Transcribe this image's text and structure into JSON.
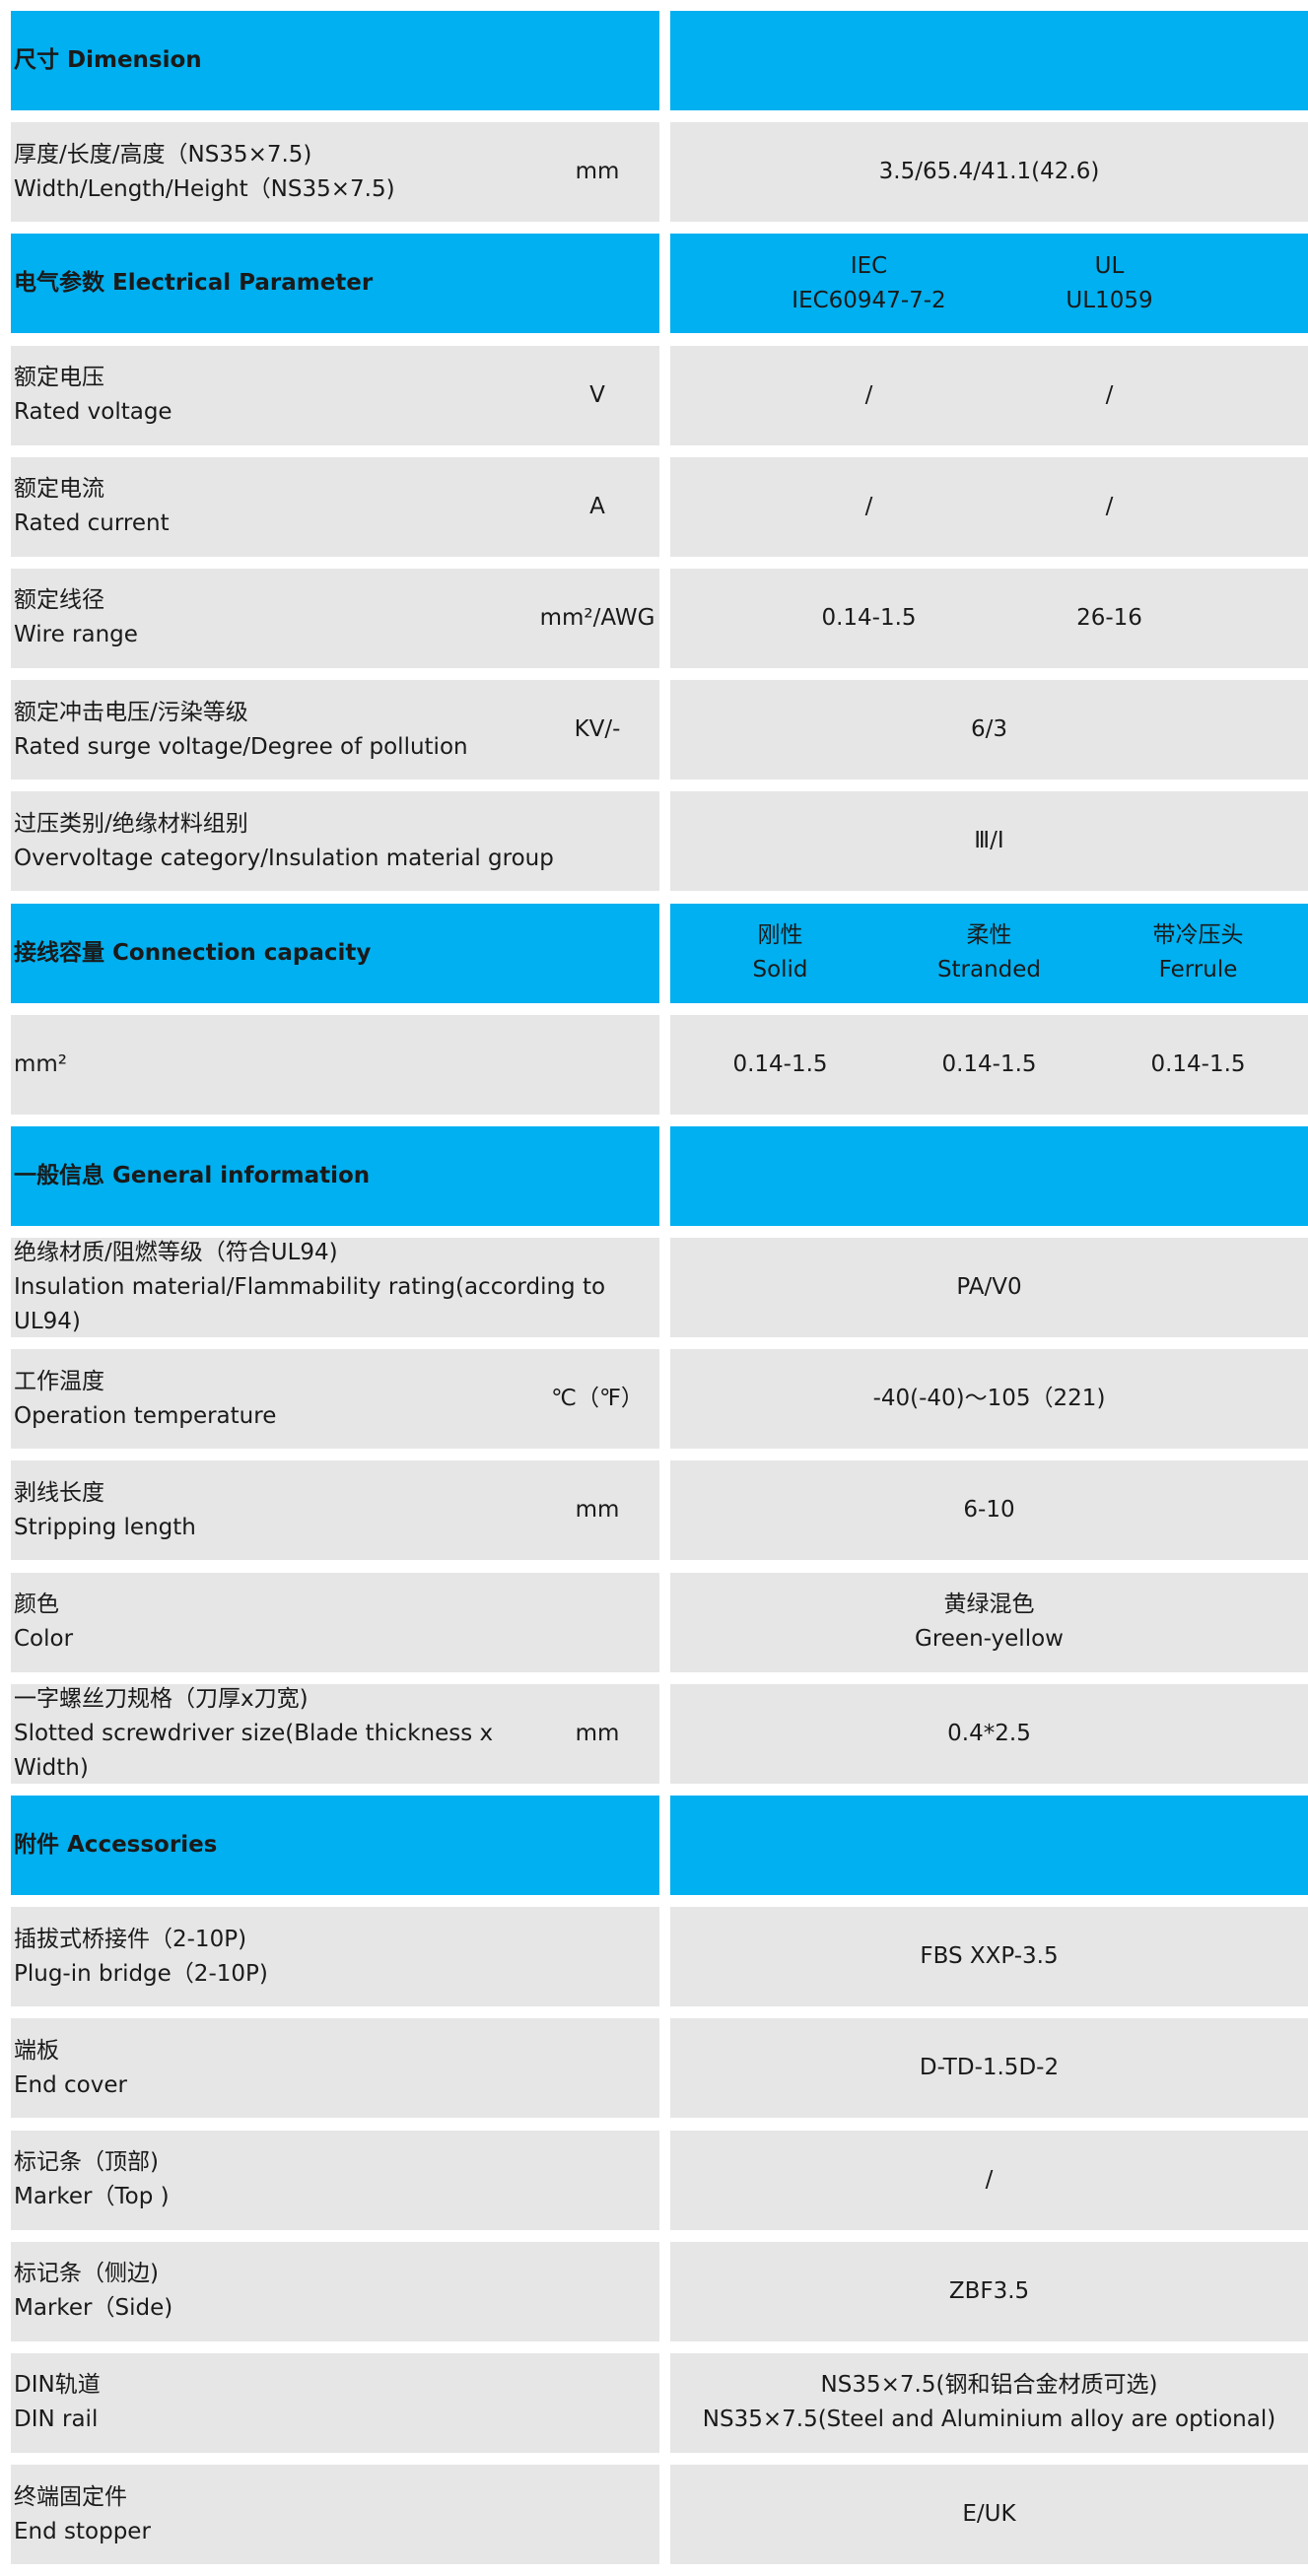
{
  "colors": {
    "header": "#00B0F0",
    "body": "#E7E6E6"
  },
  "rows": [
    {
      "type": "head",
      "label": [
        "尺寸 Dimension"
      ],
      "values": []
    },
    {
      "type": "body",
      "label": [
        "厚度/长度/高度（NS35×7.5)",
        "Width/Length/Height（NS35×7.5)"
      ],
      "unit": "mm",
      "values": [
        [
          "3.5/65.4/41.1(42.6)"
        ]
      ]
    },
    {
      "type": "head",
      "label": [
        "电气参数 Electrical Parameter"
      ],
      "values": [
        [
          "IEC",
          "IEC60947-7-2"
        ],
        [
          "UL",
          "UL1059"
        ]
      ]
    },
    {
      "type": "body",
      "label": [
        "额定电压",
        "Rated voltage"
      ],
      "unit": "V",
      "values": [
        [
          "/"
        ],
        [
          "/"
        ]
      ]
    },
    {
      "type": "body",
      "label": [
        "额定电流",
        "Rated current"
      ],
      "unit": "A",
      "values": [
        [
          "/"
        ],
        [
          "/"
        ]
      ]
    },
    {
      "type": "body",
      "label": [
        "额定线径",
        "Wire range"
      ],
      "unit": "mm²/AWG",
      "values": [
        [
          "0.14-1.5"
        ],
        [
          "26-16"
        ]
      ]
    },
    {
      "type": "body",
      "label": [
        "额定冲击电压/污染等级",
        "Rated surge voltage/Degree of pollution"
      ],
      "unit": "KV/-",
      "values": [
        [
          "6/3"
        ]
      ]
    },
    {
      "type": "body",
      "label": [
        "过压类别/绝缘材料组别",
        "Overvoltage category/Insulation material group"
      ],
      "unit": "",
      "values": [
        [
          "Ⅲ/Ⅰ"
        ]
      ]
    },
    {
      "type": "head",
      "label": [
        "接线容量 Connection capacity"
      ],
      "values": [
        [
          "刚性",
          "Solid"
        ],
        [
          "柔性",
          "Stranded"
        ],
        [
          "带冷压头",
          "Ferrule"
        ]
      ]
    },
    {
      "type": "body",
      "label": [
        "mm²"
      ],
      "unit": "",
      "values": [
        [
          "0.14-1.5"
        ],
        [
          "0.14-1.5"
        ],
        [
          "0.14-1.5"
        ]
      ]
    },
    {
      "type": "head",
      "label": [
        "一般信息 General information"
      ],
      "values": []
    },
    {
      "type": "body",
      "label": [
        "绝缘材质/阻燃等级（符合UL94)",
        "Insulation material/Flammability rating(according to",
        "UL94)"
      ],
      "unit": "",
      "values": [
        [
          "PA/V0"
        ]
      ]
    },
    {
      "type": "body",
      "label": [
        "工作温度",
        "Operation temperature"
      ],
      "unit": "℃（℉）",
      "values": [
        [
          "-40(-40)～105（221)"
        ]
      ]
    },
    {
      "type": "body",
      "label": [
        "剥线长度",
        "Stripping length"
      ],
      "unit": "mm",
      "values": [
        [
          "6-10"
        ]
      ]
    },
    {
      "type": "body",
      "label": [
        "颜色",
        "Color"
      ],
      "unit": "",
      "values": [
        [
          "黄绿混色",
          "Green-yellow"
        ]
      ]
    },
    {
      "type": "body",
      "label": [
        "一字螺丝刀规格（刀厚x刀宽)",
        "Slotted screwdriver size(Blade thickness x",
        "Width)"
      ],
      "unit": "mm",
      "values": [
        [
          "0.4*2.5"
        ]
      ]
    },
    {
      "type": "head",
      "label": [
        "附件 Accessories"
      ],
      "values": []
    },
    {
      "type": "body",
      "label": [
        "插拔式桥接件（2-10P)",
        "Plug-in bridge（2-10P)"
      ],
      "unit": "",
      "values": [
        [
          "FBS XXP-3.5"
        ]
      ]
    },
    {
      "type": "body",
      "label": [
        "端板",
        "End cover"
      ],
      "unit": "",
      "values": [
        [
          "D-TD-1.5D-2"
        ]
      ]
    },
    {
      "type": "body",
      "label": [
        "标记条（顶部)",
        "Marker（Top )"
      ],
      "unit": "",
      "values": [
        [
          "/"
        ]
      ]
    },
    {
      "type": "body",
      "label": [
        "标记条（侧边)",
        "Marker（Side)"
      ],
      "unit": "",
      "values": [
        [
          "ZBF3.5"
        ]
      ]
    },
    {
      "type": "body",
      "label": [
        "DIN轨道",
        "DIN rail"
      ],
      "unit": "",
      "values": [
        [
          "NS35×7.5(钢和铝合金材质可选)",
          "NS35×7.5(Steel and Aluminium alloy are optional)"
        ]
      ]
    },
    {
      "type": "body",
      "label": [
        "终端固定件",
        "End stopper"
      ],
      "unit": "",
      "values": [
        [
          "E/UK"
        ]
      ]
    }
  ]
}
